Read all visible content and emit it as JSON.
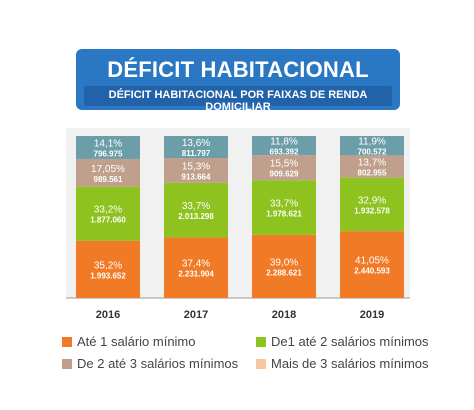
{
  "header": {
    "title": "DÉFICIT HABITACIONAL",
    "subtitle": "DÉFICIT HABITACIONAL POR FAIXAS DE RENDA DOMICILIAR"
  },
  "colors": {
    "header_bg": "#2a77c4",
    "subtitle_bg": "#2262a8",
    "ate1": "#f07a26",
    "de1a2": "#8dc21f",
    "de2a3": "#c0a08c",
    "mais3": "#6b9ea8",
    "panel_bg": "#f1f1f1"
  },
  "chart_data": {
    "type": "bar",
    "stacked": true,
    "categories": [
      "2016",
      "2017",
      "2018",
      "2019"
    ],
    "series": [
      {
        "name": "Até 1 salário mínimo",
        "color": "#f07a26",
        "percent_labels": [
          "35,2%",
          "37,4%",
          "39,0%",
          "41,05%"
        ],
        "value_labels": [
          "1.993.652",
          "2.231.904",
          "2.288.621",
          "2.440.593"
        ],
        "percents": [
          35.2,
          37.4,
          39.0,
          41.05
        ],
        "values": [
          1993652,
          2231904,
          2288621,
          2440593
        ]
      },
      {
        "name": "De1 até 2 salários mínimos",
        "color": "#8dc21f",
        "percent_labels": [
          "33,2%",
          "33,7%",
          "33,7%",
          "32,9%"
        ],
        "value_labels": [
          "1.877.060",
          "2.013.298",
          "1.978.621",
          "1.932.578"
        ],
        "percents": [
          33.2,
          33.7,
          33.7,
          32.9
        ],
        "values": [
          1877060,
          2013298,
          1978621,
          1932578
        ]
      },
      {
        "name": "De 2 até 3 salários mínimos",
        "color": "#c0a08c",
        "percent_labels": [
          "17,05%",
          "15,3%",
          "15,5%",
          "13,7%"
        ],
        "value_labels": [
          "989.561",
          "913.664",
          "909.629",
          "802.955"
        ],
        "percents": [
          17.05,
          15.3,
          15.5,
          13.7
        ],
        "values": [
          989561,
          913664,
          909629,
          802955
        ]
      },
      {
        "name": "Mais de 3 salários mínimos",
        "color": "#6b9ea8",
        "percent_labels": [
          "14,1%",
          "13,6%",
          "11,8%",
          "11,9%"
        ],
        "value_labels": [
          "796.975",
          "811.797",
          "693.392",
          "700.572"
        ],
        "percents": [
          14.1,
          13.6,
          11.8,
          11.9
        ],
        "values": [
          796975,
          811797,
          693392,
          700572
        ]
      }
    ],
    "legend_position": "bottom"
  }
}
